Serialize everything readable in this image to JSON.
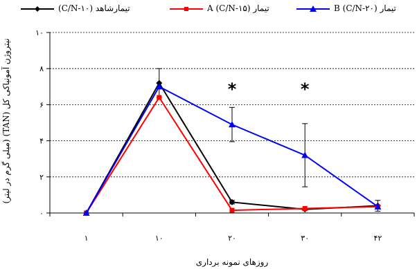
{
  "chart_data": {
    "type": "line",
    "categories": [
      "۱",
      "۱۰",
      "۲۰",
      "۳۰",
      "۴۲"
    ],
    "x": [
      1,
      10,
      20,
      30,
      42
    ],
    "xlabel": "روزهای نمونه برداری",
    "ylabel": "نیتروژن آمونیاکی کل (TAN) (میلی گرم در لیتر)",
    "ylim": [
      0,
      10
    ],
    "yticks": [
      0,
      2,
      4,
      6,
      8,
      10
    ],
    "ytick_labels": [
      "۰",
      "۲",
      "۴",
      "۶",
      "۸",
      "۱۰"
    ],
    "grid": "horizontal dotted",
    "legend_position": "top",
    "series": [
      {
        "name": "تیمارشاهد (C/N-۱۰)",
        "color": "#000000",
        "marker": "diamond",
        "values": [
          0,
          7.2,
          0.6,
          0.2,
          0.4
        ],
        "errors": [
          0,
          0.8,
          0.1,
          0.05,
          0.3
        ]
      },
      {
        "name": "تیمار A (C/N-۱۵)",
        "color": "#ff0000",
        "marker": "square",
        "values": [
          0,
          6.4,
          0.15,
          0.25,
          0.35
        ],
        "errors": [
          0,
          0,
          0,
          0,
          0
        ]
      },
      {
        "name": "تیمار B (C/N-۲۰)",
        "color": "#0000ff",
        "marker": "triangle",
        "values": [
          0,
          7.0,
          4.9,
          3.2,
          0.35
        ],
        "errors": [
          0,
          0,
          0.95,
          1.75,
          0
        ]
      }
    ],
    "annotations": [
      {
        "text": "*",
        "x": 20
      },
      {
        "text": "*",
        "x": 30
      }
    ]
  }
}
